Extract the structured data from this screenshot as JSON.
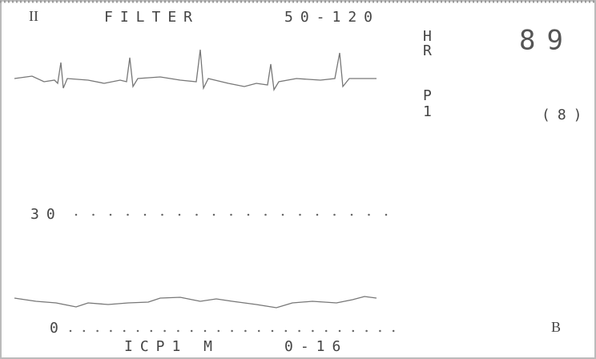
{
  "header": {
    "lead": "II",
    "mode": "FILTER",
    "range": "50-120"
  },
  "heart_rate": {
    "label": [
      "H",
      "R"
    ],
    "value": "89"
  },
  "pressure": {
    "label": [
      "P",
      "1"
    ],
    "value": "(8)"
  },
  "scale": {
    "upper": "30",
    "lower": "0"
  },
  "footer": {
    "channel": "ICP1 M",
    "range": "0-16"
  },
  "marker": "B"
}
